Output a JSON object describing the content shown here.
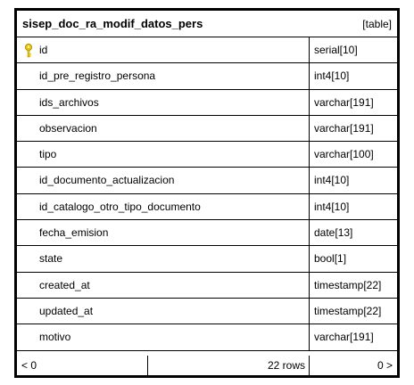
{
  "table": {
    "name": "sisep_doc_ra_modif_datos_pers",
    "kind_label": "[table]",
    "key_color": "#f0c800",
    "columns": [
      {
        "name": "id",
        "type": "serial[10]",
        "primary_key": true,
        "icon": "key-icon"
      },
      {
        "name": "id_pre_registro_persona",
        "type": "int4[10]"
      },
      {
        "name": "ids_archivos",
        "type": "varchar[191]"
      },
      {
        "name": "observacion",
        "type": "varchar[191]"
      },
      {
        "name": "tipo",
        "type": "varchar[100]"
      },
      {
        "name": "id_documento_actualizacion",
        "type": "int4[10]"
      },
      {
        "name": "id_catalogo_otro_tipo_documento",
        "type": "int4[10]"
      },
      {
        "name": "fecha_emision",
        "type": "date[13]"
      },
      {
        "name": "state",
        "type": "bool[1]"
      },
      {
        "name": "created_at",
        "type": "timestamp[22]"
      },
      {
        "name": "updated_at",
        "type": "timestamp[22]"
      },
      {
        "name": "motivo",
        "type": "varchar[191]"
      }
    ],
    "footer": {
      "prev_label": "< 0",
      "rows_label": "22 rows",
      "next_label": "0 >"
    }
  }
}
